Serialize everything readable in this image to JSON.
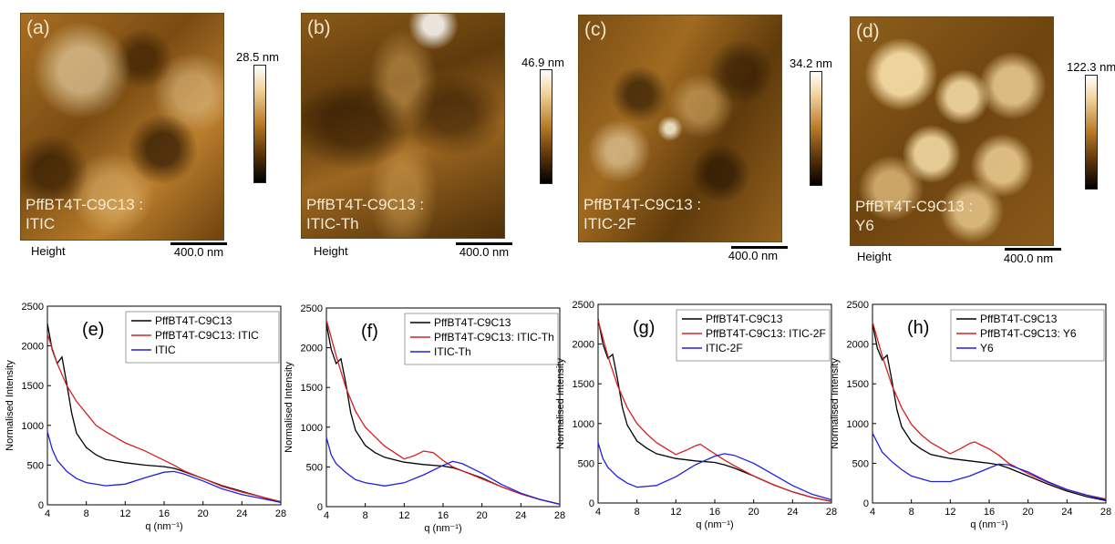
{
  "afm_panels": [
    {
      "letter": "(a)",
      "label_line1": "PffBT4T-C9C13 :",
      "label_line2": "ITIC",
      "colorbar_max": "28.5 nm",
      "height_label": "Height",
      "scale_label": "400.0 nm"
    },
    {
      "letter": "(b)",
      "label_line1": "PffBT4T-C9C13 :",
      "label_line2": "ITIC-Th",
      "colorbar_max": "46.9 nm",
      "height_label": "Height",
      "scale_label": "400.0 nm"
    },
    {
      "letter": "(c)",
      "label_line1": "PffBT4T-C9C13 :",
      "label_line2": "ITIC-2F",
      "colorbar_max": "34.2 nm",
      "height_label": "Height",
      "scale_label": "400.0 nm"
    },
    {
      "letter": "(d)",
      "label_line1": "PffBT4T-C9C13 :",
      "label_line2": "Y6",
      "colorbar_max": "122.3 nm",
      "height_label": "Height",
      "scale_label": "400.0 nm"
    }
  ],
  "chart_data": [
    {
      "type": "line",
      "panel": "(e)",
      "xlabel": "q (nm⁻¹)",
      "ylabel": "Normalised Intensity",
      "xlim": [
        4,
        28
      ],
      "ylim": [
        0,
        2500
      ],
      "xticks": [
        4,
        8,
        12,
        16,
        20,
        24,
        28
      ],
      "yticks": [
        0,
        500,
        1000,
        1500,
        2000,
        2500
      ],
      "legend_position": "top-right",
      "series": [
        {
          "name": "PffBT4T-C9C13",
          "color": "#000000",
          "x": [
            4,
            4.5,
            5,
            5.5,
            6,
            6.5,
            7,
            8,
            9,
            10,
            12,
            14,
            16,
            17,
            18,
            20,
            22,
            24,
            26,
            28
          ],
          "y": [
            2280,
            1950,
            1780,
            1860,
            1520,
            1150,
            900,
            720,
            630,
            570,
            530,
            500,
            480,
            460,
            420,
            330,
            240,
            170,
            100,
            30
          ]
        },
        {
          "name": "PffBT4T-C9C13: ITIC",
          "color": "#d62020",
          "x": [
            4,
            5,
            6,
            7,
            8,
            9,
            10,
            12,
            14,
            16,
            17,
            18,
            20,
            22,
            24,
            26,
            28
          ],
          "y": [
            2150,
            1780,
            1500,
            1300,
            1150,
            1000,
            920,
            780,
            680,
            560,
            500,
            430,
            330,
            230,
            160,
            100,
            40
          ]
        },
        {
          "name": "ITIC",
          "color": "#2020e0",
          "x": [
            4,
            4.5,
            5,
            6,
            7,
            8,
            10,
            12,
            14,
            16,
            17,
            18,
            20,
            22,
            24,
            26,
            28
          ],
          "y": [
            920,
            700,
            560,
            420,
            330,
            280,
            240,
            260,
            340,
            410,
            420,
            390,
            300,
            200,
            130,
            80,
            30
          ]
        }
      ]
    },
    {
      "type": "line",
      "panel": "(f)",
      "xlabel": "q (nm⁻¹)",
      "ylabel": "Normalised Intensity",
      "xlim": [
        4,
        28
      ],
      "ylim": [
        0,
        2500
      ],
      "xticks": [
        4,
        8,
        12,
        16,
        20,
        24,
        28
      ],
      "yticks": [
        0,
        500,
        1000,
        1500,
        2000,
        2500
      ],
      "legend_position": "top-right",
      "series": [
        {
          "name": "PffBT4T-C9C13",
          "color": "#000000",
          "x": [
            4,
            4.5,
            5,
            5.5,
            6,
            6.5,
            7,
            8,
            9,
            10,
            12,
            14,
            16,
            17,
            18,
            20,
            22,
            24,
            26,
            28
          ],
          "y": [
            2300,
            1980,
            1800,
            1860,
            1550,
            1180,
            960,
            770,
            680,
            620,
            560,
            530,
            510,
            490,
            450,
            360,
            250,
            160,
            90,
            30
          ]
        },
        {
          "name": "PffBT4T-C9C13: ITIC-Th",
          "color": "#d62020",
          "x": [
            4,
            5,
            6,
            7,
            8,
            9,
            10,
            12,
            13,
            14,
            15,
            16,
            17,
            18,
            20,
            22,
            24,
            26,
            28
          ],
          "y": [
            2350,
            1900,
            1500,
            1200,
            1000,
            880,
            760,
            600,
            640,
            700,
            680,
            580,
            500,
            450,
            350,
            250,
            160,
            90,
            30
          ]
        },
        {
          "name": "ITIC-Th",
          "color": "#2020e0",
          "x": [
            4,
            4.5,
            5,
            6,
            7,
            8,
            10,
            12,
            14,
            16,
            17,
            18,
            20,
            22,
            24,
            26,
            28
          ],
          "y": [
            870,
            650,
            540,
            430,
            340,
            300,
            260,
            300,
            400,
            520,
            570,
            540,
            420,
            280,
            170,
            90,
            30
          ]
        }
      ]
    },
    {
      "type": "line",
      "panel": "(g)",
      "xlabel": "q (nm⁻¹)",
      "ylabel": "Normalised Intensity",
      "xlim": [
        4,
        28
      ],
      "ylim": [
        0,
        2500
      ],
      "xticks": [
        4,
        8,
        12,
        16,
        20,
        24,
        28
      ],
      "yticks": [
        0,
        500,
        1000,
        1500,
        2000,
        2500
      ],
      "legend_position": "top-right",
      "series": [
        {
          "name": "PffBT4T-C9C13",
          "color": "#000000",
          "x": [
            4,
            4.5,
            5,
            5.5,
            6,
            6.5,
            7,
            8,
            9,
            10,
            12,
            14,
            16,
            17,
            18,
            20,
            22,
            24,
            26,
            28
          ],
          "y": [
            2320,
            2000,
            1820,
            1870,
            1560,
            1200,
            980,
            780,
            690,
            620,
            560,
            530,
            510,
            480,
            440,
            340,
            230,
            140,
            70,
            20
          ]
        },
        {
          "name": "PffBT4T-C9C13: ITIC-2F",
          "color": "#d62020",
          "x": [
            4,
            5,
            6,
            7,
            8,
            9,
            10,
            12,
            13,
            14,
            14.5,
            15,
            16,
            17,
            18,
            20,
            22,
            24,
            26,
            28
          ],
          "y": [
            2300,
            1850,
            1480,
            1200,
            1000,
            870,
            760,
            610,
            660,
            720,
            740,
            700,
            620,
            540,
            470,
            340,
            230,
            140,
            70,
            20
          ]
        },
        {
          "name": "ITIC-2F",
          "color": "#2020e0",
          "x": [
            4,
            4.5,
            5,
            6,
            7,
            8,
            10,
            12,
            14,
            16,
            17,
            18,
            20,
            22,
            24,
            26,
            28
          ],
          "y": [
            760,
            560,
            450,
            330,
            250,
            200,
            220,
            330,
            480,
            590,
            620,
            600,
            500,
            360,
            220,
            110,
            40
          ]
        }
      ]
    },
    {
      "type": "line",
      "panel": "(h)",
      "xlabel": "q (nm⁻¹)",
      "ylabel": "Normalised Intensity",
      "xlim": [
        4,
        28
      ],
      "ylim": [
        0,
        2500
      ],
      "xticks": [
        4,
        8,
        12,
        16,
        20,
        24,
        28
      ],
      "yticks": [
        0,
        500,
        1000,
        1500,
        2000,
        2500
      ],
      "legend_position": "top-right",
      "series": [
        {
          "name": "PffBT4T-C9C13",
          "color": "#000000",
          "x": [
            4,
            4.5,
            5,
            5.5,
            6,
            6.5,
            7,
            8,
            9,
            10,
            12,
            14,
            16,
            17,
            18,
            20,
            22,
            24,
            26,
            28
          ],
          "y": [
            2260,
            1950,
            1800,
            1860,
            1540,
            1180,
            960,
            770,
            680,
            610,
            560,
            530,
            500,
            480,
            440,
            340,
            240,
            150,
            80,
            30
          ]
        },
        {
          "name": "PffBT4T-C9C13: Y6",
          "color": "#d62020",
          "x": [
            4,
            5,
            6,
            7,
            8,
            9,
            10,
            12,
            13,
            14,
            14.5,
            15,
            16,
            17,
            18,
            20,
            22,
            24,
            26,
            28
          ],
          "y": [
            2280,
            1850,
            1480,
            1200,
            990,
            860,
            760,
            620,
            680,
            750,
            770,
            740,
            680,
            600,
            500,
            370,
            260,
            170,
            100,
            50
          ]
        },
        {
          "name": "Y6",
          "color": "#2020e0",
          "x": [
            4,
            4.5,
            5,
            6,
            7,
            8,
            10,
            12,
            14,
            16,
            17,
            18,
            20,
            22,
            24,
            26,
            28
          ],
          "y": [
            880,
            760,
            640,
            520,
            420,
            340,
            270,
            270,
            340,
            440,
            490,
            480,
            390,
            270,
            170,
            100,
            40
          ]
        }
      ]
    }
  ]
}
